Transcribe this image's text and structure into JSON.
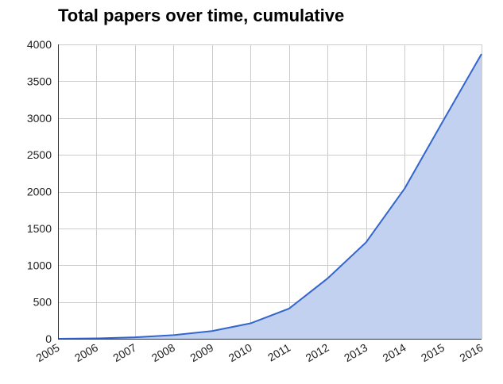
{
  "chart_data": {
    "type": "area",
    "title": "Total papers over time, cumulative",
    "xlabel": "",
    "ylabel": "",
    "x": [
      "2005",
      "2006",
      "2007",
      "2008",
      "2009",
      "2010",
      "2011",
      "2012",
      "2013",
      "2014",
      "2015",
      "2016"
    ],
    "series": [
      {
        "values": [
          0,
          5,
          20,
          50,
          105,
          210,
          410,
          820,
          1310,
          2040,
          2960,
          3870
        ]
      }
    ],
    "ylim": [
      0,
      4000
    ],
    "yticks": [
      0,
      500,
      1000,
      1500,
      2000,
      2500,
      3000,
      3500,
      4000
    ],
    "grid": true,
    "legend": "none",
    "colors": {
      "line": "#3366cc",
      "fill": "#c3d1f0",
      "grid": "#cccccc",
      "axis": "#333333"
    }
  }
}
